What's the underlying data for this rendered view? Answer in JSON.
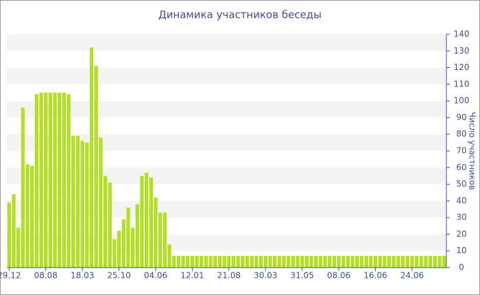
{
  "chart_data": {
    "type": "bar",
    "title": "Динамика участников беседы",
    "y_label": "Число участников",
    "categories": [
      "29.12",
      null,
      null,
      null,
      null,
      null,
      null,
      null,
      "08.08",
      null,
      null,
      null,
      null,
      null,
      null,
      null,
      "18.03",
      null,
      null,
      null,
      null,
      null,
      null,
      null,
      "25.10",
      null,
      null,
      null,
      null,
      null,
      null,
      null,
      "04.06",
      null,
      null,
      null,
      null,
      null,
      null,
      null,
      "12.01",
      null,
      null,
      null,
      null,
      null,
      null,
      null,
      "21.08",
      null,
      null,
      null,
      null,
      null,
      null,
      null,
      "30.03",
      null,
      null,
      null,
      null,
      null,
      null,
      null,
      "31.05",
      null,
      null,
      null,
      null,
      null,
      null,
      null,
      "08.06",
      null,
      null,
      null,
      null,
      null,
      null,
      null,
      "16.06",
      null,
      null,
      null,
      null,
      null,
      null,
      null,
      "24.06",
      null,
      null,
      null,
      null,
      null,
      null,
      null
    ],
    "values": [
      39,
      44,
      24,
      96,
      62,
      61,
      104,
      105,
      105,
      105,
      105,
      105,
      105,
      104,
      79,
      79,
      76,
      75,
      132,
      121,
      78,
      55,
      51,
      17,
      22,
      29,
      36,
      24,
      38,
      55,
      57,
      54,
      42,
      33,
      33,
      14,
      7,
      7,
      7,
      7,
      7,
      7,
      7,
      7,
      7,
      7,
      7,
      7,
      7,
      7,
      7,
      7,
      7,
      7,
      7,
      7,
      7,
      7,
      7,
      7,
      7,
      7,
      7,
      7,
      7,
      7,
      7,
      7,
      7,
      7,
      7,
      7,
      7,
      7,
      7,
      7,
      7,
      7,
      7,
      7,
      7,
      7,
      7,
      7,
      7,
      7,
      7,
      7,
      7,
      7,
      7,
      7,
      7,
      7,
      7,
      7
    ],
    "color": "#b5de2b",
    "ylim": [
      0,
      140
    ],
    "yticks": [
      0,
      10,
      20,
      30,
      40,
      50,
      60,
      70,
      80,
      90,
      100,
      110,
      120,
      130,
      140
    ],
    "grid": "bands",
    "y_axis_side": "right"
  }
}
